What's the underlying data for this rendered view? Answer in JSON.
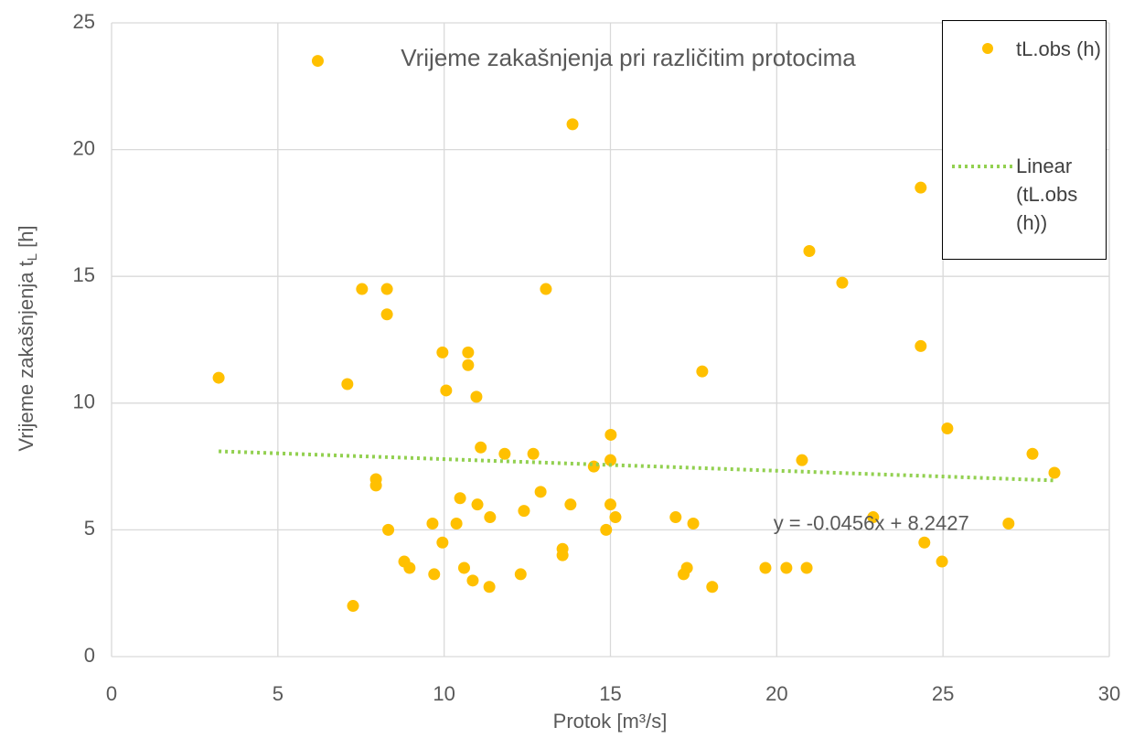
{
  "chart_data": {
    "type": "scatter",
    "title": "Vrijeme zakašnjenja pri različitim protocima",
    "x_label": "Protok [m³/s]",
    "y_label": {
      "text": "Vrijeme zakašnjenja t",
      "subscript": "L",
      "suffix": " [h]"
    },
    "xlim": [
      0,
      30
    ],
    "xticks": [
      0,
      5,
      10,
      15,
      20,
      25,
      30
    ],
    "ylim": [
      0,
      25
    ],
    "yticks": [
      0,
      5,
      10,
      15,
      20,
      25
    ],
    "grid": true,
    "legend": "upper right",
    "series": [
      {
        "name": "tL.obs (h)",
        "color": "#FFC000",
        "x": [
          6.2,
          13.86,
          3.22,
          7.09,
          7.53,
          8.28,
          8.28,
          9.95,
          10.06,
          10.72,
          10.72,
          10.97,
          11.1,
          11.82,
          12.68,
          13.06,
          15.01,
          15.0,
          14.5,
          7.95,
          7.95,
          8.32,
          10.48,
          11.0,
          12.9,
          13.8,
          12.4,
          10.37,
          11.38,
          9.65,
          9.95,
          8.8,
          8.96,
          9.7,
          10.6,
          10.86,
          11.36,
          12.3,
          13.56,
          13.56,
          7.26,
          15.0,
          15.15,
          14.87,
          16.96,
          17.49,
          17.76,
          17.2,
          17.3,
          18.06,
          19.66,
          20.29,
          20.9,
          20.76,
          20.98,
          21.97,
          22.9,
          24.33,
          24.33,
          24.44,
          24.97,
          25.13,
          26.97,
          27.69,
          28.35
        ],
        "values": [
          23.5,
          21.0,
          11.0,
          10.75,
          14.5,
          14.5,
          13.5,
          12.0,
          10.5,
          12.0,
          11.5,
          10.25,
          8.25,
          8.0,
          8.0,
          14.5,
          8.75,
          7.75,
          7.5,
          7.0,
          6.75,
          5.0,
          6.25,
          6.0,
          6.5,
          6.0,
          5.75,
          5.25,
          5.5,
          5.25,
          4.5,
          3.75,
          3.5,
          3.25,
          3.5,
          3.0,
          2.75,
          3.25,
          4.25,
          4.0,
          2.0,
          6.0,
          5.5,
          5.0,
          5.5,
          5.25,
          11.25,
          3.25,
          3.5,
          2.75,
          3.5,
          3.5,
          3.5,
          7.75,
          16.0,
          14.75,
          5.5,
          18.5,
          12.25,
          4.5,
          3.75,
          9.0,
          5.25,
          8.0,
          7.25
        ]
      },
      {
        "name": "Linear (tL.obs (h))",
        "color": "#92D050",
        "style": "dotted",
        "x": [
          3.22,
          28.35
        ],
        "values": [
          8.1,
          6.95
        ]
      }
    ],
    "annotations": [
      {
        "text": "y = -0.0456x + 8.2427",
        "x": 19.9,
        "y": 5.2
      }
    ]
  }
}
